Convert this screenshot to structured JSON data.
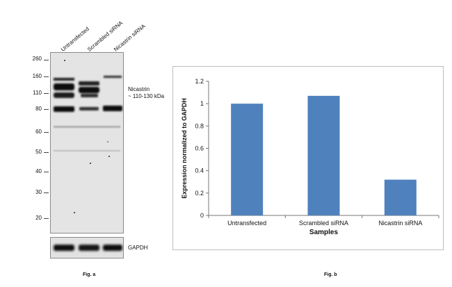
{
  "blot": {
    "lanes": [
      "Untransfected",
      "Scrambled siRNA",
      "Nicastrin siRNA"
    ],
    "mw_markers": [
      "260",
      "160",
      "110",
      "80",
      "60",
      "50",
      "40",
      "30",
      "20"
    ],
    "target_label": [
      "Nicastrin",
      "~ 110-130 kDa"
    ],
    "loading_control": "GAPDH",
    "figure_label": "Fig. a"
  },
  "chart_panel": {
    "figure_label": "Fig. b"
  },
  "chart_data": {
    "type": "bar",
    "categories": [
      "Untransfected",
      "Scrambled siRNA",
      "Nicastrin siRNA"
    ],
    "values": [
      1.0,
      1.07,
      0.32
    ],
    "xlabel": "Samples",
    "ylabel": "Expression normalized to GAPDH",
    "ylim": [
      0,
      1.2
    ],
    "yticks": [
      "0",
      "0.2",
      "0.4",
      "0.6",
      "0.8",
      "1",
      "1.2"
    ],
    "bar_color": "#4f81bd",
    "grid": false,
    "legend": "none"
  }
}
